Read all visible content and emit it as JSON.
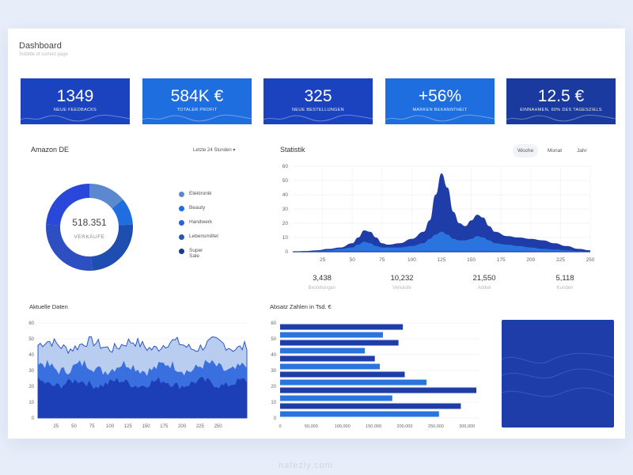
{
  "header": {
    "title": "Dashboard",
    "subtitle": "Subtitle of current page"
  },
  "kpis": [
    {
      "value": "1349",
      "label": "NEUE FEEDBACKS",
      "color": "#1c43bf"
    },
    {
      "value": "584K €",
      "label": "TOTALER PROFIT",
      "color": "#1f6ee0"
    },
    {
      "value": "325",
      "label": "NEUE BESTELLUNGEN",
      "color": "#1c43bf"
    },
    {
      "value": "+56%",
      "label": "MARKEN BEKANNTHEIT",
      "color": "#1f6ee0"
    },
    {
      "value": "12.5 €",
      "label": "EINNAHMEN, 60% DES TAGESZIELS",
      "color": "#1a3a9f"
    }
  ],
  "amazon": {
    "title": "Amazon DE",
    "dropdown": "Letzte 24 Stunden",
    "center_value": "518.351",
    "center_label": "VERKÄUFE",
    "chart_data": {
      "type": "pie",
      "donut": true,
      "labels": [
        "Elektronik",
        "Beauty",
        "Handwerk",
        "Lebensmittel",
        "Super Sale"
      ],
      "values": [
        14,
        10,
        25,
        27,
        24
      ],
      "colors": [
        "#5b88cf",
        "#1f6ee0",
        "#1e4fb0",
        "#2d4fc2",
        "#2947d8"
      ]
    },
    "legend": [
      {
        "label": "Elektronik",
        "color": "#5b88cf"
      },
      {
        "label": "Beauty",
        "color": "#1f6ee0"
      },
      {
        "label": "Handwerk",
        "color": "#2d5fd6"
      },
      {
        "label": "Lebensmittel",
        "color": "#2a5aa8"
      },
      {
        "label": "Super Sale",
        "color": "#1b3a8f"
      }
    ]
  },
  "statistik": {
    "title": "Statistik",
    "tabs": [
      "Woche",
      "Monat",
      "Jahr"
    ],
    "chart_data": {
      "type": "area",
      "x": [
        0,
        10,
        20,
        30,
        40,
        50,
        55,
        60,
        65,
        70,
        75,
        80,
        90,
        100,
        110,
        115,
        120,
        125,
        130,
        135,
        140,
        145,
        150,
        155,
        160,
        165,
        170,
        180,
        190,
        200,
        210,
        220,
        230,
        240,
        250
      ],
      "series": [
        {
          "values": [
            0,
            0.5,
            1,
            2,
            3,
            6,
            10,
            15,
            14,
            10,
            6,
            5,
            6,
            9,
            14,
            22,
            40,
            55,
            45,
            28,
            20,
            18,
            22,
            26,
            24,
            18,
            14,
            11,
            10,
            9,
            8,
            6,
            4,
            2,
            1
          ],
          "color": "#1e3da8"
        },
        {
          "values": [
            0,
            0,
            0.5,
            1,
            2,
            3,
            5,
            7,
            6,
            4,
            3,
            3,
            3,
            4,
            6,
            9,
            12,
            14,
            12,
            9,
            8,
            8,
            9,
            11,
            10,
            8,
            6,
            5,
            4,
            3,
            2,
            1.5,
            1,
            0.5,
            0
          ],
          "color": "#2a74e0"
        }
      ],
      "xticks": [
        25,
        50,
        75,
        100,
        125,
        150,
        175,
        200,
        225,
        250
      ],
      "yticks": [
        0,
        10,
        20,
        30,
        40,
        50,
        60
      ],
      "ylim": [
        0,
        60
      ],
      "xlim": [
        0,
        250
      ]
    },
    "stats": [
      {
        "value": "3,438",
        "label": "Bestellungen"
      },
      {
        "value": "10,232",
        "label": "Verkäufe"
      },
      {
        "value": "21,550",
        "label": "Artikel"
      },
      {
        "value": "5,118",
        "label": "Kunden"
      }
    ]
  },
  "aktuelle": {
    "title": "Aktuelle Daten",
    "chart_data": {
      "type": "area",
      "xticks": [
        25,
        50,
        75,
        100,
        125,
        150,
        175,
        200,
        225,
        250
      ],
      "yticks": [
        0,
        10,
        20,
        30,
        40,
        50,
        60
      ],
      "ylim": [
        0,
        60
      ],
      "xlim": [
        0,
        290
      ],
      "series": [
        {
          "base": 46,
          "amp": 4,
          "color": "#b9cdf0"
        },
        {
          "base": 32,
          "amp": 4,
          "color": "#3a6fe0"
        },
        {
          "base": 22,
          "amp": 3,
          "color": "#1c3fb8"
        }
      ]
    }
  },
  "absatz": {
    "title": "Absatz Zahlen in Tsd. €",
    "chart_data": {
      "type": "bar",
      "orientation": "horizontal",
      "values": [
        197000,
        165000,
        190000,
        136000,
        152000,
        160000,
        200000,
        235000,
        315000,
        180000,
        290000,
        255000
      ],
      "colors": [
        "#1e3da8",
        "#2a74e0",
        "#1e3da8",
        "#2a74e0",
        "#1e3da8",
        "#2a74e0",
        "#1e3da8",
        "#2a74e0",
        "#1e3da8",
        "#2a74e0",
        "#1e3da8",
        "#2a74e0"
      ],
      "yticks": [
        0,
        10,
        20,
        30,
        40,
        50,
        60
      ],
      "xticks": [
        "0",
        "50,000",
        "100,000",
        "150,000",
        "200,000",
        "250,000",
        "300,000"
      ],
      "xlim": [
        0,
        320000
      ]
    }
  },
  "watermark": "nafezly.com"
}
